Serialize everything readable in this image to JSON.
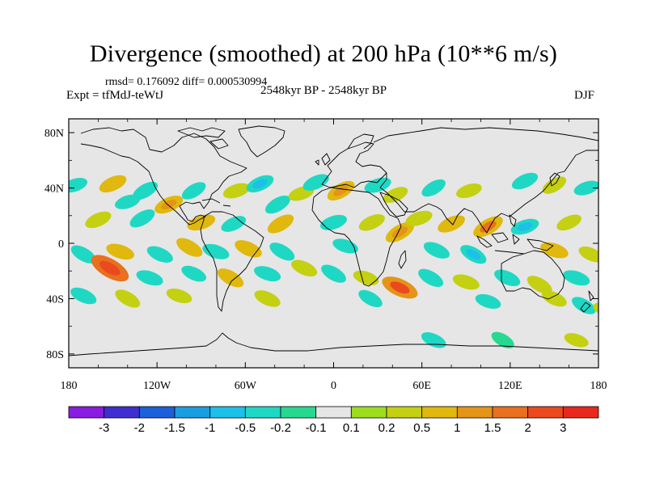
{
  "title": "Divergence (smoothed) at 200 hPa (10**6 m/s)",
  "stats": "rmsd= 0.176092 diff= 0.000530994",
  "experiment": "Expt = tfMdJ-teWtJ",
  "period": "2548kyr BP - 2548kyr BP",
  "season": "DJF",
  "lat_ticks": [
    {
      "label": "80N",
      "lat": 80
    },
    {
      "label": "40N",
      "lat": 40
    },
    {
      "label": "0",
      "lat": 0
    },
    {
      "label": "40S",
      "lat": -40
    },
    {
      "label": "80S",
      "lat": -80
    }
  ],
  "lon_ticks": [
    {
      "label": "180",
      "lon": -180
    },
    {
      "label": "120W",
      "lon": -120
    },
    {
      "label": "60W",
      "lon": -60
    },
    {
      "label": "0",
      "lon": 0
    },
    {
      "label": "60E",
      "lon": 60
    },
    {
      "label": "120E",
      "lon": 120
    },
    {
      "label": "180",
      "lon": 180
    }
  ],
  "colorbar": {
    "colors": [
      "#8a1be0",
      "#3f2fd0",
      "#1b60d8",
      "#1a9ee0",
      "#1cc0e8",
      "#1fd8c4",
      "#27d890",
      "#e6e6e6",
      "#9edc1e",
      "#c4d012",
      "#e0b80e",
      "#e49416",
      "#e8701e",
      "#ea4a1e",
      "#e8281c"
    ],
    "labels": [
      "-3",
      "-2",
      "-1.5",
      "-1",
      "-0.5",
      "-0.2",
      "-0.1",
      "0.1",
      "0.2",
      "0.5",
      "1",
      "1.5",
      "2",
      "3"
    ]
  },
  "chart_data": {
    "type": "map",
    "variable": "Divergence (smoothed) at 200 hPa",
    "units": "10**6 m/s",
    "projection": "cylindrical equidistant",
    "lon_range": [
      -180,
      180
    ],
    "lat_range": [
      -90,
      90
    ],
    "levels": [
      -3,
      -2,
      -1.5,
      -1,
      -0.5,
      -0.2,
      -0.1,
      0.1,
      0.2,
      0.5,
      1,
      1.5,
      2,
      3
    ],
    "features": [
      {
        "lon": -176,
        "lat": 42,
        "value": -0.3
      },
      {
        "lon": -150,
        "lat": 43,
        "value": 0.5
      },
      {
        "lon": -128,
        "lat": 38,
        "value": -0.4
      },
      {
        "lon": -140,
        "lat": 30,
        "value": -0.3
      },
      {
        "lon": -112,
        "lat": 28,
        "value": 0.6
      },
      {
        "lon": -95,
        "lat": 38,
        "value": -0.3
      },
      {
        "lon": -66,
        "lat": 38,
        "value": 0.4
      },
      {
        "lon": -50,
        "lat": 43,
        "value": -0.5
      },
      {
        "lon": -38,
        "lat": 28,
        "value": -0.4
      },
      {
        "lon": -22,
        "lat": 36,
        "value": 0.3
      },
      {
        "lon": -12,
        "lat": 44,
        "value": -0.4
      },
      {
        "lon": 5,
        "lat": 38,
        "value": 0.6
      },
      {
        "lon": 30,
        "lat": 42,
        "value": -0.4
      },
      {
        "lon": 42,
        "lat": 35,
        "value": 0.3
      },
      {
        "lon": 68,
        "lat": 40,
        "value": -0.3
      },
      {
        "lon": 92,
        "lat": 38,
        "value": 0.3
      },
      {
        "lon": 130,
        "lat": 45,
        "value": -0.4
      },
      {
        "lon": 150,
        "lat": 42,
        "value": 0.3
      },
      {
        "lon": 172,
        "lat": 40,
        "value": -0.3
      },
      {
        "lon": -160,
        "lat": 17,
        "value": 0.4
      },
      {
        "lon": -130,
        "lat": 18,
        "value": -0.4
      },
      {
        "lon": -90,
        "lat": 15,
        "value": 0.5
      },
      {
        "lon": -68,
        "lat": 14,
        "value": -0.3
      },
      {
        "lon": -36,
        "lat": 14,
        "value": 0.5
      },
      {
        "lon": 0,
        "lat": 15,
        "value": -0.4
      },
      {
        "lon": 26,
        "lat": 15,
        "value": 0.4
      },
      {
        "lon": 45,
        "lat": 8,
        "value": 0.7
      },
      {
        "lon": 58,
        "lat": 18,
        "value": 0.4
      },
      {
        "lon": 80,
        "lat": 14,
        "value": 0.5
      },
      {
        "lon": 105,
        "lat": 12,
        "value": 0.8
      },
      {
        "lon": 130,
        "lat": 12,
        "value": -0.5
      },
      {
        "lon": 160,
        "lat": 15,
        "value": 0.3
      },
      {
        "lon": -170,
        "lat": -8,
        "value": -0.4
      },
      {
        "lon": -145,
        "lat": -6,
        "value": 0.5
      },
      {
        "lon": -118,
        "lat": -8,
        "value": -0.4
      },
      {
        "lon": -98,
        "lat": -3,
        "value": 0.5
      },
      {
        "lon": -80,
        "lat": -6,
        "value": -0.4
      },
      {
        "lon": -58,
        "lat": -4,
        "value": 0.5
      },
      {
        "lon": -35,
        "lat": -6,
        "value": -0.4
      },
      {
        "lon": 8,
        "lat": -2,
        "value": -0.3
      },
      {
        "lon": 70,
        "lat": -5,
        "value": -0.4
      },
      {
        "lon": 95,
        "lat": -8,
        "value": -0.5
      },
      {
        "lon": 150,
        "lat": -5,
        "value": 0.5
      },
      {
        "lon": 175,
        "lat": -8,
        "value": 0.3
      },
      {
        "lon": -152,
        "lat": -18,
        "value": 1.5
      },
      {
        "lon": -125,
        "lat": -25,
        "value": -0.4
      },
      {
        "lon": -95,
        "lat": -22,
        "value": -0.3
      },
      {
        "lon": -70,
        "lat": -25,
        "value": 0.5
      },
      {
        "lon": -45,
        "lat": -22,
        "value": -0.4
      },
      {
        "lon": -20,
        "lat": -18,
        "value": 0.4
      },
      {
        "lon": 0,
        "lat": -22,
        "value": -0.4
      },
      {
        "lon": 22,
        "lat": -25,
        "value": 0.3
      },
      {
        "lon": 45,
        "lat": -32,
        "value": 1.2
      },
      {
        "lon": 66,
        "lat": -25,
        "value": -0.4
      },
      {
        "lon": 90,
        "lat": -28,
        "value": 0.4
      },
      {
        "lon": 118,
        "lat": -25,
        "value": -0.4
      },
      {
        "lon": 140,
        "lat": -30,
        "value": 0.4
      },
      {
        "lon": 165,
        "lat": -25,
        "value": -0.4
      },
      {
        "lon": -170,
        "lat": -38,
        "value": -0.4
      },
      {
        "lon": -140,
        "lat": -40,
        "value": 0.4
      },
      {
        "lon": -105,
        "lat": -38,
        "value": 0.3
      },
      {
        "lon": -45,
        "lat": -40,
        "value": 0.4
      },
      {
        "lon": 25,
        "lat": -40,
        "value": -0.3
      },
      {
        "lon": 105,
        "lat": -42,
        "value": -0.3
      },
      {
        "lon": 150,
        "lat": -40,
        "value": 0.3
      },
      {
        "lon": 170,
        "lat": -45,
        "value": -0.3
      },
      {
        "lon": 185,
        "lat": -48,
        "value": 0.3
      },
      {
        "lon": 68,
        "lat": -70,
        "value": -0.3
      },
      {
        "lon": 115,
        "lat": -70,
        "value": -0.2
      },
      {
        "lon": 165,
        "lat": -70,
        "value": 0.2
      }
    ]
  }
}
